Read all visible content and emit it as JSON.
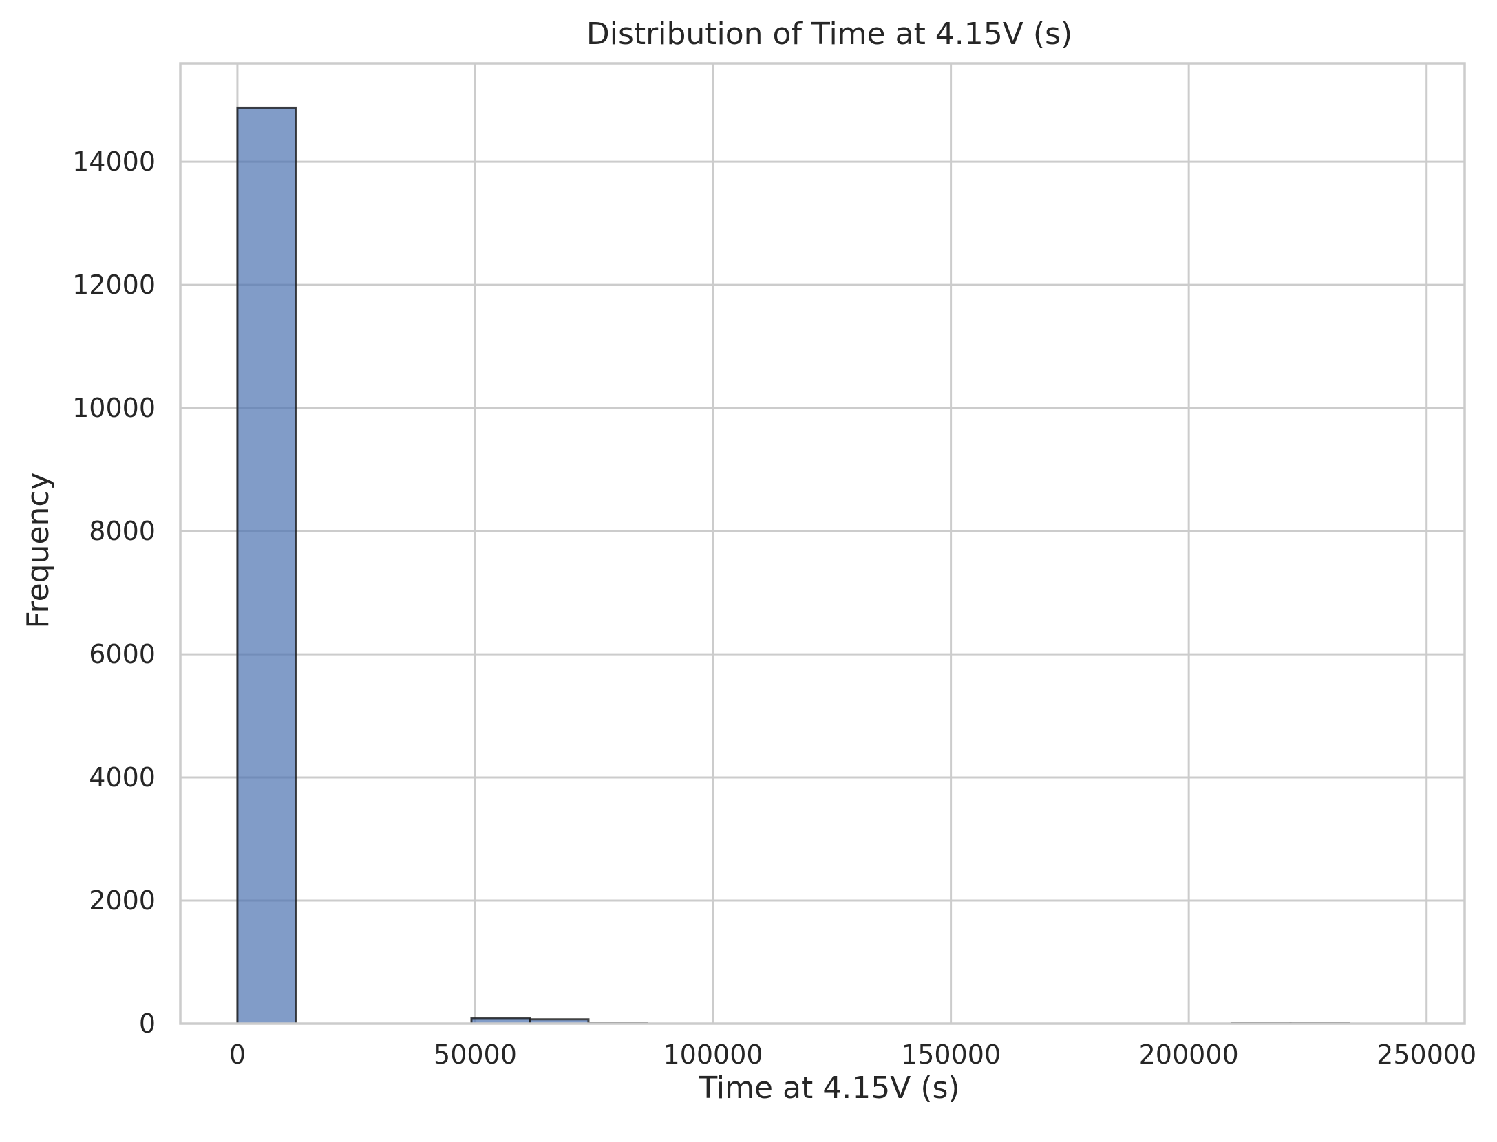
{
  "chart_data": {
    "type": "histogram",
    "title": "Distribution of Time at 4.15V (s)",
    "xlabel": "Time at 4.15V (s)",
    "ylabel": "Frequency",
    "xlim": [
      -12000,
      258000
    ],
    "ylim": [
      0,
      15600
    ],
    "x_ticks": [
      0,
      50000,
      100000,
      150000,
      200000,
      250000
    ],
    "x_tick_labels": [
      "0",
      "50000",
      "100000",
      "150000",
      "200000",
      "250000"
    ],
    "y_ticks": [
      0,
      2000,
      4000,
      6000,
      8000,
      10000,
      12000,
      14000
    ],
    "y_tick_labels": [
      "0",
      "2000",
      "4000",
      "6000",
      "8000",
      "10000",
      "12000",
      "14000"
    ],
    "grid": true,
    "bins": [
      {
        "start": 0,
        "end": 12300,
        "count": 14880
      },
      {
        "start": 12300,
        "end": 24600,
        "count": 0
      },
      {
        "start": 24600,
        "end": 36900,
        "count": 0
      },
      {
        "start": 36900,
        "end": 49200,
        "count": 0
      },
      {
        "start": 49200,
        "end": 61500,
        "count": 90
      },
      {
        "start": 61500,
        "end": 73800,
        "count": 70
      },
      {
        "start": 73800,
        "end": 86100,
        "count": 10
      },
      {
        "start": 86100,
        "end": 98400,
        "count": 0
      },
      {
        "start": 98400,
        "end": 110700,
        "count": 0
      },
      {
        "start": 110700,
        "end": 123000,
        "count": 0
      },
      {
        "start": 123000,
        "end": 135300,
        "count": 0
      },
      {
        "start": 135300,
        "end": 147600,
        "count": 0
      },
      {
        "start": 147600,
        "end": 159900,
        "count": 0
      },
      {
        "start": 159900,
        "end": 172200,
        "count": 0
      },
      {
        "start": 172200,
        "end": 184500,
        "count": 0
      },
      {
        "start": 184500,
        "end": 196800,
        "count": 0
      },
      {
        "start": 196800,
        "end": 209100,
        "count": 0
      },
      {
        "start": 209100,
        "end": 221400,
        "count": 10
      },
      {
        "start": 221400,
        "end": 233700,
        "count": 10
      },
      {
        "start": 233700,
        "end": 246000,
        "count": 0
      }
    ],
    "colors": {
      "bar_fill": "#4c72b0",
      "bar_edge": "#1a1a1a",
      "grid": "#cccccc",
      "spine": "#cccccc"
    }
  }
}
